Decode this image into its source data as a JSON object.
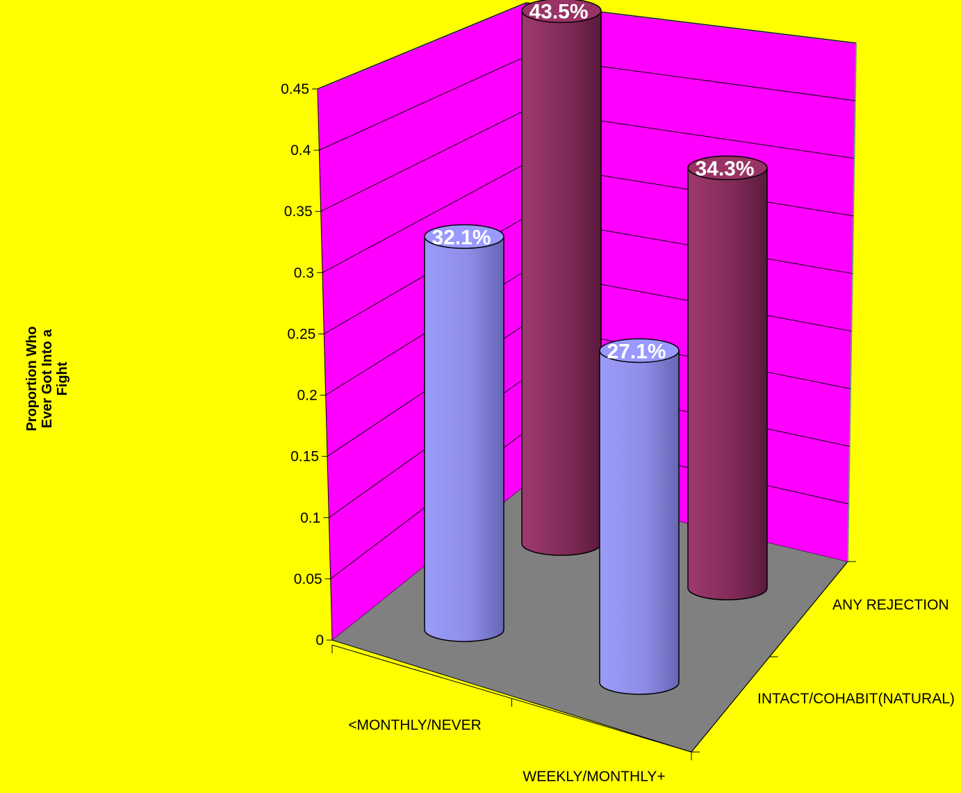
{
  "chart_data": {
    "type": "bar",
    "style": "3d-cylinder",
    "title": "",
    "ylabel": "Proportion Who Ever Got Into a Fight",
    "ylabel_lines": [
      "Proportion Who",
      "Ever Got Into a",
      "Fight"
    ],
    "xlabel": "",
    "categories": [
      "<MONTHLY/NEVER",
      "WEEKLY/MONTHLY+"
    ],
    "series": [
      {
        "name": "INTACT/COHABIT(NATURAL)",
        "values": [
          0.321,
          0.271
        ],
        "labels": [
          "32.1%",
          "27.1%"
        ],
        "color": "#9999FF"
      },
      {
        "name": "ANY REJECTION",
        "values": [
          0.435,
          0.343
        ],
        "labels": [
          "43.5%",
          "34.3%"
        ],
        "color": "#993366"
      }
    ],
    "ylim": [
      0,
      0.45
    ],
    "yticks": [
      "0",
      "0.05",
      "0.1",
      "0.15",
      "0.2",
      "0.25",
      "0.3",
      "0.35",
      "0.4",
      "0.45"
    ],
    "grid": true,
    "colors": {
      "background": "#FFFF00",
      "walls": "#FF00FF",
      "floor": "#808080"
    }
  }
}
